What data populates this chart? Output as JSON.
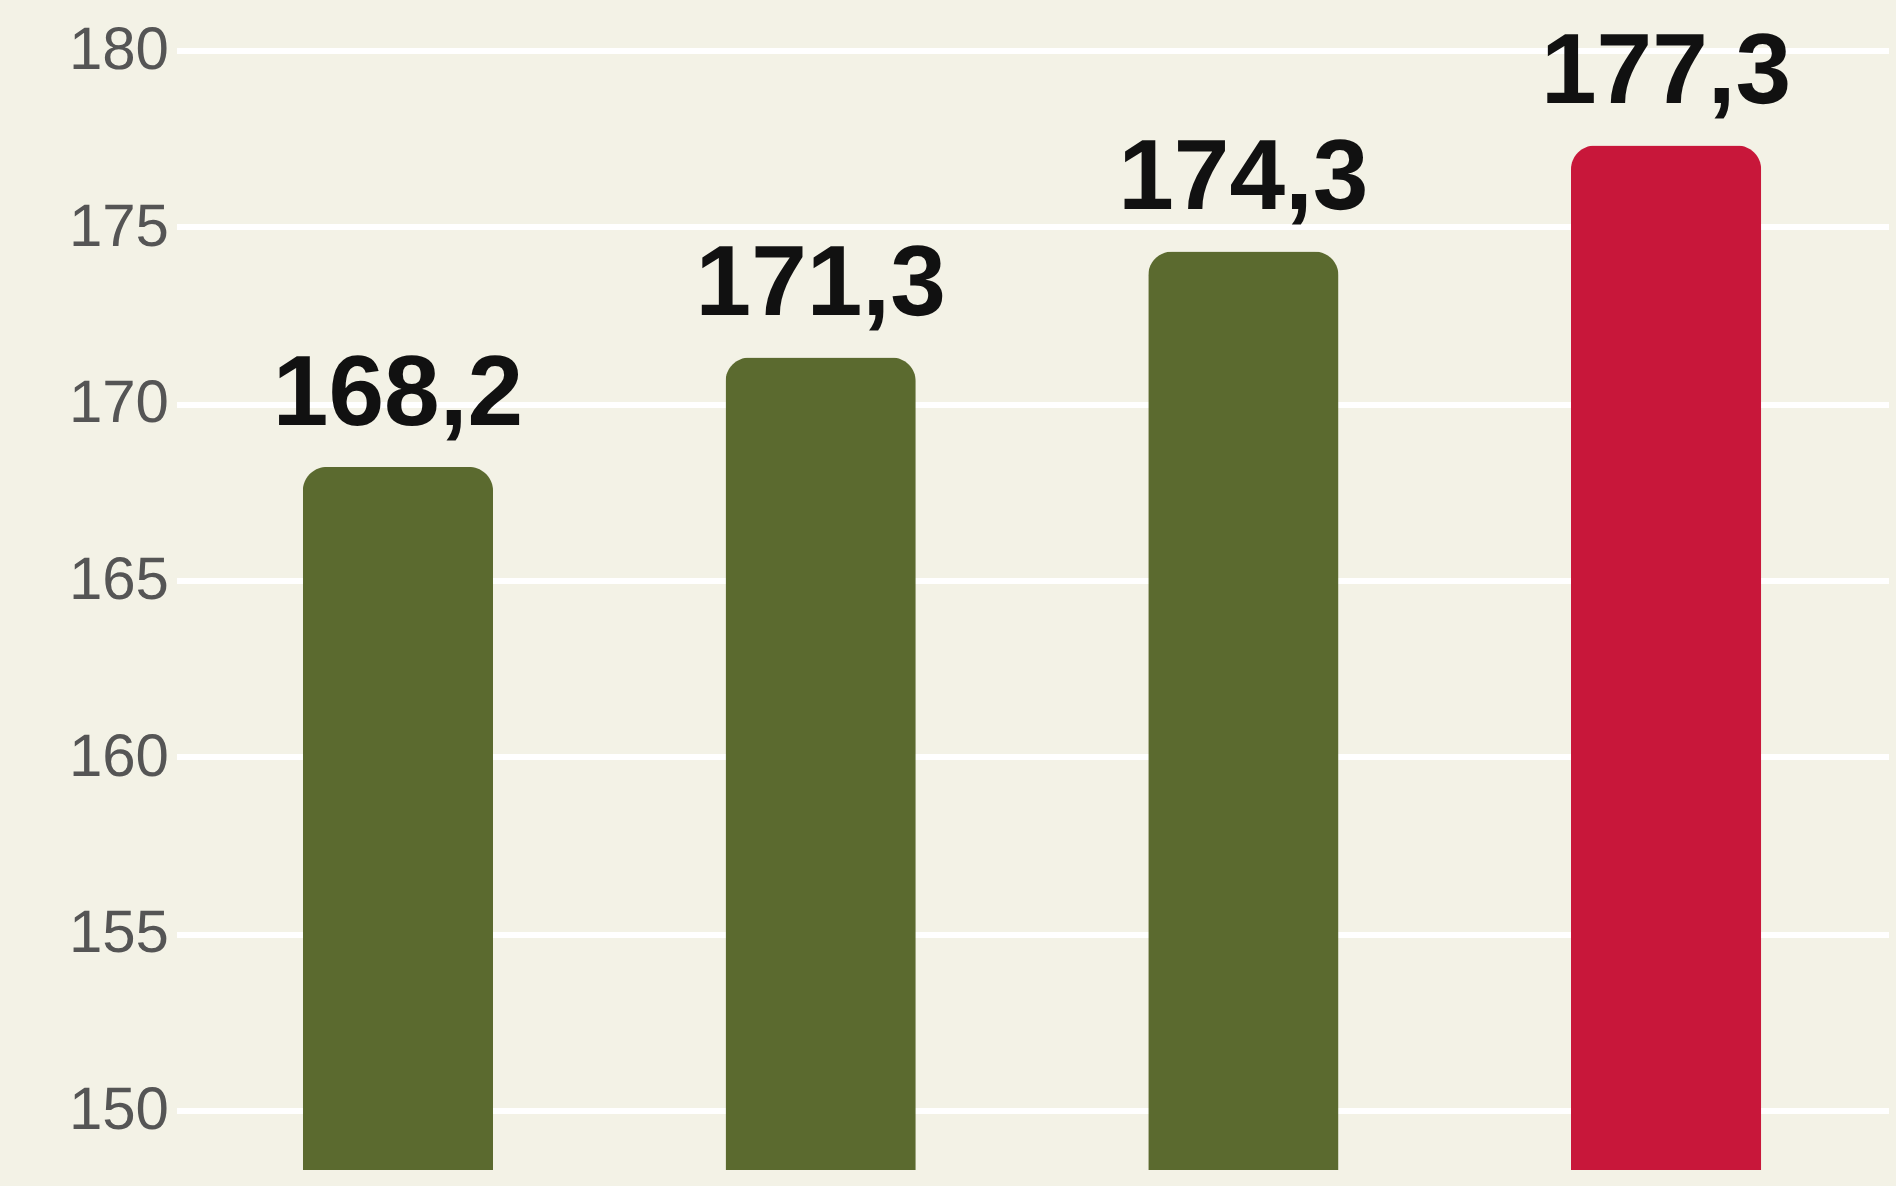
{
  "chart_data": {
    "type": "bar",
    "categories": [
      null,
      null,
      null,
      null
    ],
    "values": [
      168.2,
      171.3,
      174.3,
      177.3
    ],
    "colors": [
      "#5b6a2f",
      "#5b6a2f",
      "#5b6a2f",
      "#c8173a"
    ],
    "value_labels": [
      "168,2",
      "171,3",
      "174,3",
      "177,3"
    ],
    "ylim": [
      150,
      180
    ],
    "yticks": [
      150,
      155,
      160,
      165,
      170,
      175,
      180
    ],
    "grid": "y"
  }
}
